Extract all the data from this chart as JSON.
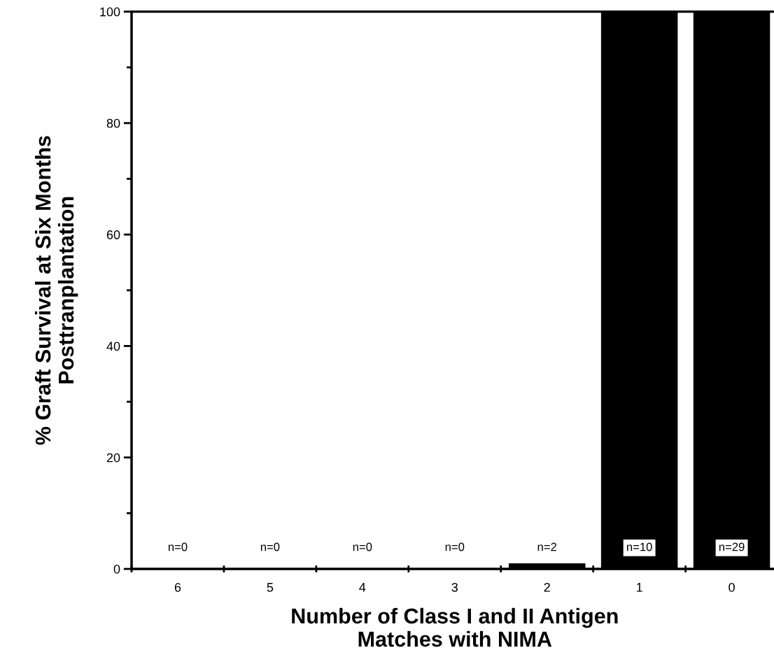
{
  "chart_data": {
    "type": "bar",
    "xlabel": "Number of Class I and II Antigen\nMatches with NIMA",
    "ylabel": "% Graft Survival at Six Months\nPosttranplantation",
    "categories": [
      "6",
      "5",
      "4",
      "3",
      "2",
      "1",
      "0"
    ],
    "values": [
      0,
      0,
      0,
      0,
      1,
      100,
      100
    ],
    "color": "#000000",
    "ylim": [
      0,
      100
    ],
    "yticks": [
      0,
      {
        "value": 10,
        "label": null
      },
      20,
      {
        "value": 30,
        "label": null
      },
      40,
      {
        "value": 50,
        "label": null
      },
      60,
      {
        "value": 70,
        "label": null
      },
      80,
      {
        "value": 90,
        "label": null
      },
      100
    ],
    "annotations": [
      "n=0",
      "n=0",
      "n=0",
      "n=0",
      "n=2",
      "n=10",
      "n=29"
    ],
    "grid": false,
    "legend": false
  }
}
